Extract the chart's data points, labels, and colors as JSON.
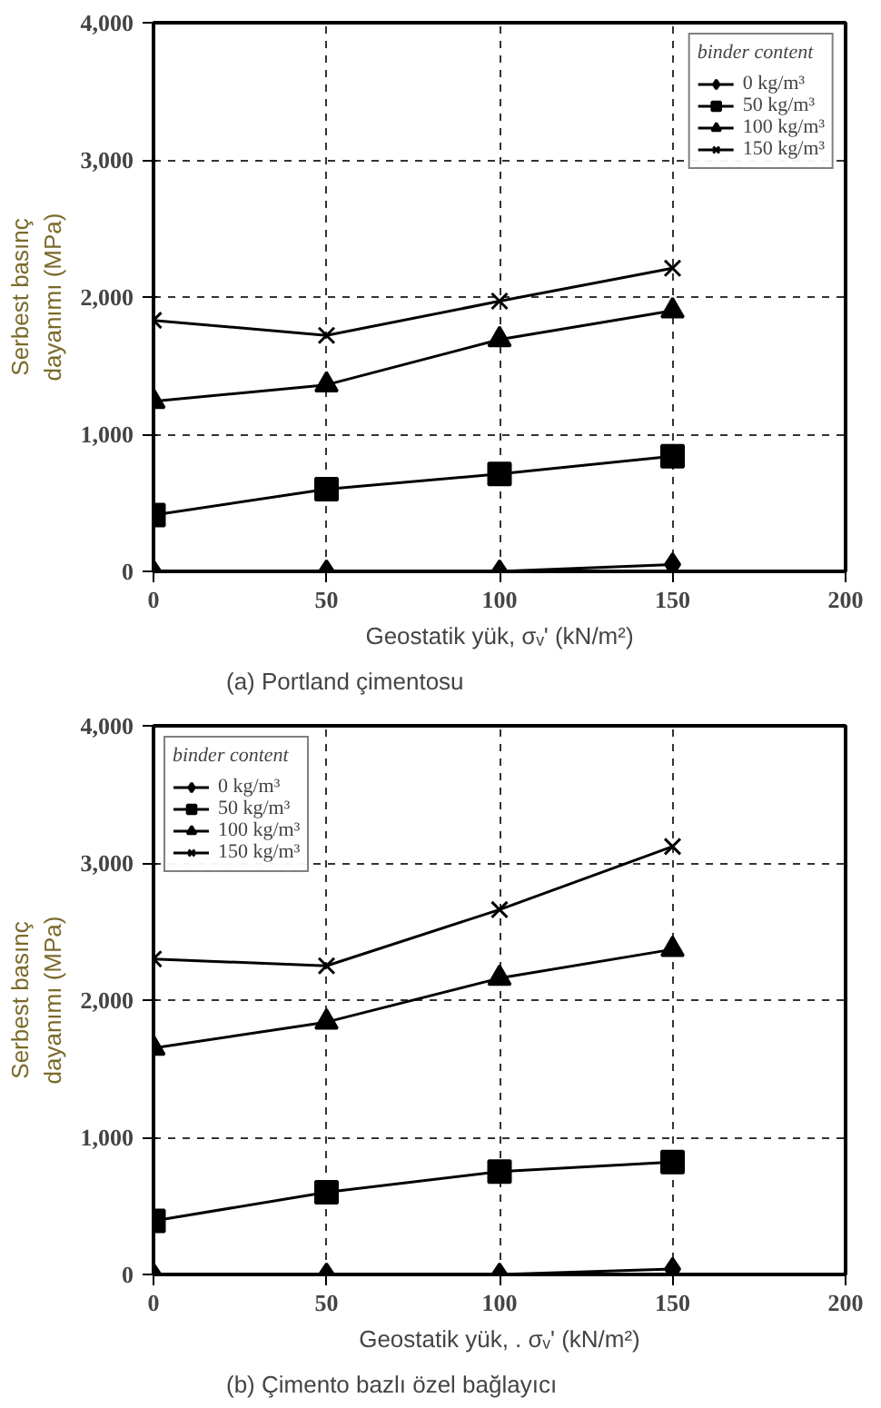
{
  "chart_data": [
    {
      "type": "line",
      "ylabel": "Serbest basınç\ndayanımı (MPa)",
      "xlabel": "Geostatik yük, σᵥ' (kN/m²)",
      "legend_title": "binder content",
      "annotations": [
        "(a) Portland çimentosu"
      ],
      "x": [
        0,
        50,
        100,
        150
      ],
      "xlim": [
        0,
        200
      ],
      "xticks": [
        0,
        50,
        100,
        150,
        200
      ],
      "ylim": [
        0,
        4000
      ],
      "yticks": [
        {
          "value": 0,
          "label": "0"
        },
        {
          "value": 1000,
          "label": "1,000"
        },
        {
          "value": 2000,
          "label": "2,000"
        },
        {
          "value": 3000,
          "label": "3,000"
        },
        {
          "value": 4000,
          "label": "4,000"
        }
      ],
      "grid": true,
      "legend": "top right",
      "series": [
        {
          "name": "0 kg/m³",
          "color": "#000000",
          "marker": "diamond",
          "values": [
            0,
            0,
            0,
            50
          ]
        },
        {
          "name": "50 kg/m³",
          "color": "#000000",
          "marker": "square",
          "values": [
            410,
            600,
            710,
            840
          ]
        },
        {
          "name": "100 kg/m³",
          "color": "#000000",
          "marker": "triangle",
          "values": [
            1240,
            1360,
            1690,
            1900
          ]
        },
        {
          "name": "150 kg/m³",
          "color": "#000000",
          "marker": "cross",
          "values": [
            1830,
            1720,
            1970,
            2210
          ]
        }
      ]
    },
    {
      "type": "line",
      "ylabel": "Serbest basınç\ndayanımı (MPa)",
      "xlabel": "Geostatik yük, . σᵥ' (kN/m²)",
      "legend_title": "binder content",
      "annotations": [
        "(b) Çimento bazlı özel bağlayıcı"
      ],
      "x": [
        0,
        50,
        100,
        150
      ],
      "xlim": [
        0,
        200
      ],
      "xticks": [
        0,
        50,
        100,
        150,
        200
      ],
      "ylim": [
        0,
        4000
      ],
      "yticks": [
        {
          "value": 0,
          "label": "0"
        },
        {
          "value": 1000,
          "label": "1,000"
        },
        {
          "value": 2000,
          "label": "2,000"
        },
        {
          "value": 3000,
          "label": "3,000"
        },
        {
          "value": 4000,
          "label": "4,000"
        }
      ],
      "grid": true,
      "legend": "top left",
      "series": [
        {
          "name": "0 kg/m³",
          "color": "#000000",
          "marker": "diamond",
          "values": [
            0,
            0,
            0,
            40
          ]
        },
        {
          "name": "50 kg/m³",
          "color": "#000000",
          "marker": "square",
          "values": [
            390,
            600,
            750,
            820
          ]
        },
        {
          "name": "100 kg/m³",
          "color": "#000000",
          "marker": "triangle",
          "values": [
            1650,
            1840,
            2160,
            2370
          ]
        },
        {
          "name": "150 kg/m³",
          "color": "#000000",
          "marker": "cross",
          "values": [
            2300,
            2250,
            2660,
            3120
          ]
        }
      ]
    }
  ]
}
